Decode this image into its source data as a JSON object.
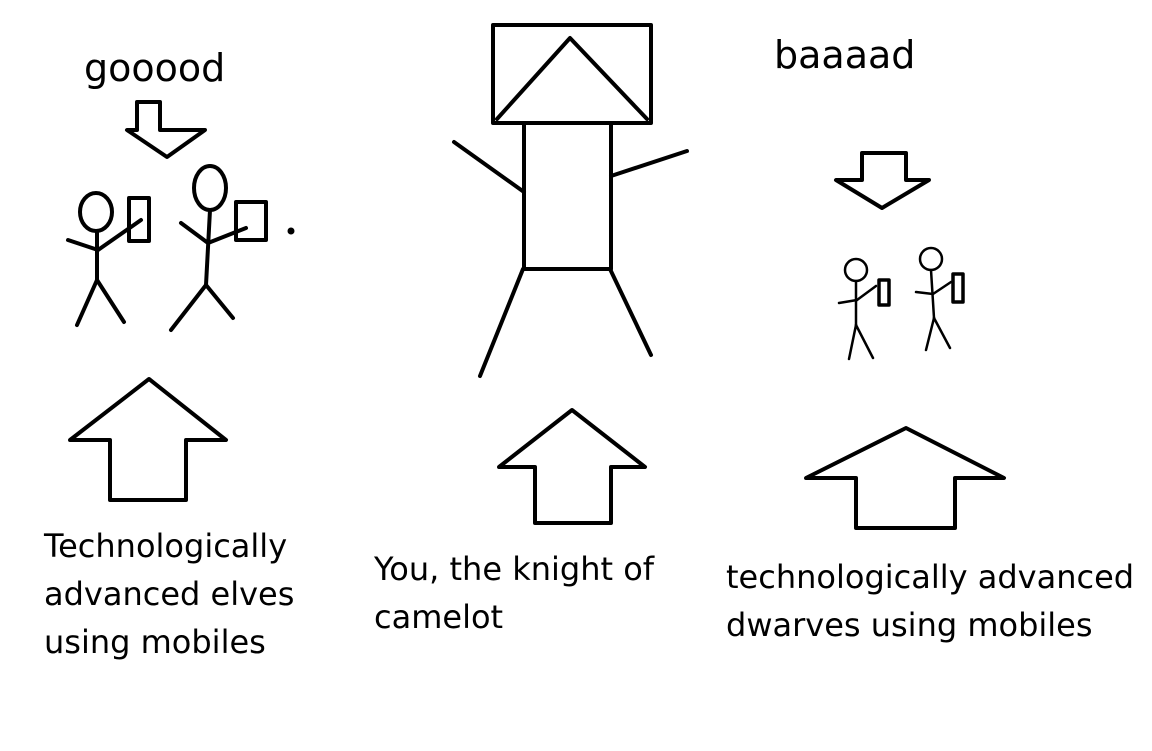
{
  "labels": {
    "good": "gooood",
    "bad": "baaaad",
    "elves": [
      "Technologically",
      "advanced elves",
      "using mobiles"
    ],
    "knight": [
      "You, the knight of",
      "camelot"
    ],
    "dwarves": [
      "technologically advanced",
      "dwarves using mobiles"
    ]
  },
  "colors": {
    "ink": "#000000",
    "paper": "#ffffff"
  }
}
